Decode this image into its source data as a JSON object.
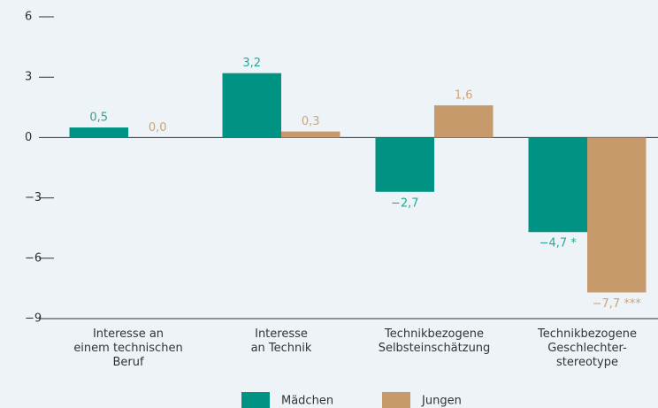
{
  "chart_data": {
    "type": "bar",
    "categories": [
      "Interesse an\neinem technischen\nBeruf",
      "Interesse\nan Technik",
      "Technikbezogene\nSelbsteinschätzung",
      "Technikbezogene\nGeschlechter-\nstereotype"
    ],
    "series": [
      {
        "name": "Mädchen",
        "color": "#009383",
        "label_color": "#2aa596",
        "values": [
          0.5,
          3.2,
          -2.7,
          -4.7
        ],
        "value_labels": [
          "0,5",
          "3,2",
          "−2,7",
          "−4,7 *"
        ]
      },
      {
        "name": "Jungen",
        "color": "#c69a6a",
        "label_color": "#c9a57d",
        "values": [
          0.0,
          0.3,
          1.6,
          -7.7
        ],
        "value_labels": [
          "0,0",
          "0,3",
          "1,6",
          "−7,7 ***"
        ]
      }
    ],
    "ylim": [
      -9,
      6
    ],
    "yticks": [
      6,
      3,
      0,
      {
        "value": -3,
        "label": "−3"
      },
      {
        "value": -6,
        "label": "−6"
      },
      {
        "value": -9,
        "label": "−9"
      }
    ]
  }
}
